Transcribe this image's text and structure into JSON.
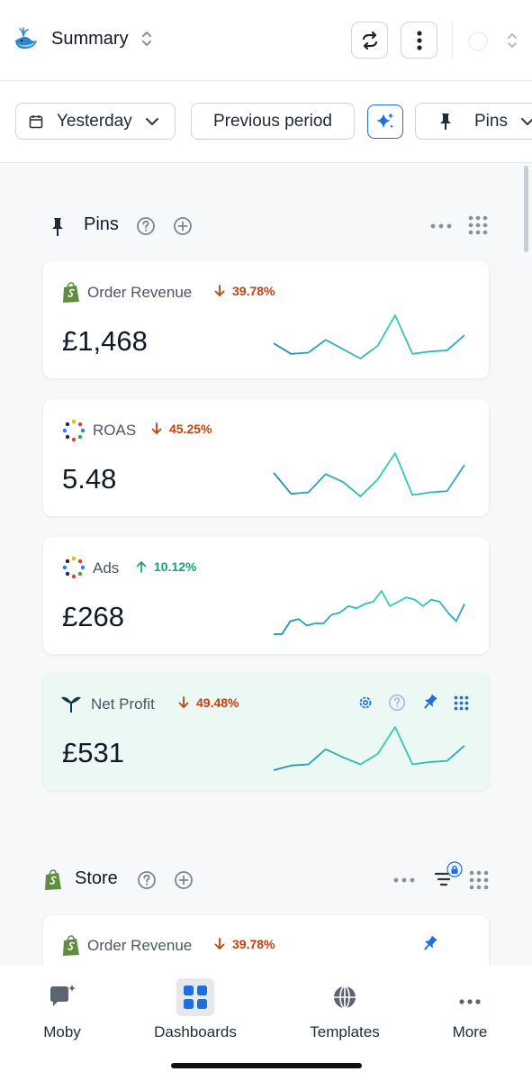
{
  "header": {
    "title": "Summary",
    "icons": [
      "whale-logo",
      "chevron-updown-icon",
      "refresh-icon",
      "more-vertical-icon",
      "circle-icon"
    ]
  },
  "filters": {
    "date_label": "Yesterday",
    "compare_label": "Previous period",
    "pins_label": "Pins"
  },
  "pins_section": {
    "title": "Pins",
    "cards": [
      {
        "label": "Order Revenue",
        "delta": "39.78%",
        "direction": "down",
        "value": "£1,468",
        "source": "shopify",
        "spark": [
          16,
          7,
          8,
          19,
          11,
          3,
          14,
          40,
          7,
          9,
          10,
          23
        ]
      },
      {
        "label": "ROAS",
        "delta": "45.25%",
        "direction": "down",
        "value": "5.48",
        "source": "dots",
        "spark": [
          20,
          4,
          5,
          19,
          13,
          2,
          15,
          35,
          3,
          5,
          6,
          26
        ]
      },
      {
        "label": "Ads",
        "delta": "10.12%",
        "direction": "up",
        "value": "£268",
        "source": "dots",
        "spark": [
          5,
          5,
          11,
          12,
          9,
          10,
          10,
          14,
          15,
          18,
          17,
          19,
          20,
          25,
          18,
          20,
          22,
          21,
          18,
          21,
          20,
          15,
          11,
          19
        ]
      },
      {
        "label": "Net Profit",
        "delta": "49.48%",
        "direction": "down",
        "value": "£531",
        "source": "triple-whale",
        "spark": [
          3,
          7,
          8,
          21,
          14,
          8,
          17,
          40,
          8,
          10,
          11,
          24
        ]
      }
    ]
  },
  "store_section": {
    "title": "Store",
    "cards": [
      {
        "label": "Order Revenue",
        "delta": "39.78%",
        "direction": "down"
      }
    ]
  },
  "bottom_nav": {
    "items": [
      "Moby",
      "Dashboards",
      "Templates",
      "More"
    ],
    "active": "Dashboards"
  },
  "colors": {
    "accent_blue": "#1d6fe0",
    "delta_down": "#c2410c",
    "delta_up": "#16a37a",
    "highlight_card": "#ecf8f3",
    "shopify_green": "#5e8e3e"
  }
}
